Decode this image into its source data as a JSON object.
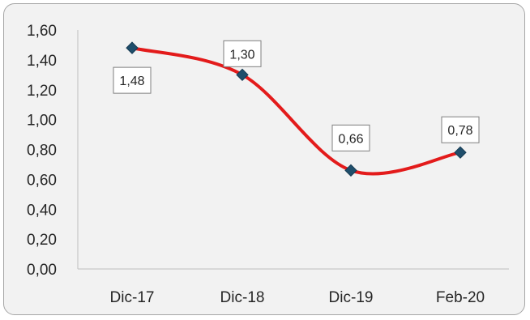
{
  "chart_data": {
    "type": "line",
    "categories": [
      "Dic-17",
      "Dic-18",
      "Dic-19",
      "Feb-20"
    ],
    "series": [
      {
        "values": [
          1.48,
          1.3,
          0.66,
          0.78
        ],
        "data_labels": [
          "1,48",
          "1,30",
          "0,66",
          "0,78"
        ],
        "line_color": "#e31b1b",
        "marker_color": "#1f4e6b",
        "marker": "diamond",
        "smooth": true
      }
    ],
    "ylim": [
      0,
      1.6
    ],
    "yticks": [
      0,
      0.2,
      0.4,
      0.6,
      0.8,
      1.0,
      1.2,
      1.4,
      1.6
    ],
    "ytick_labels": [
      "0,00",
      "0,20",
      "0,40",
      "0,60",
      "0,80",
      "1,00",
      "1,20",
      "1,40",
      "1,60"
    ],
    "grid": false,
    "legend": "none",
    "title": "",
    "xlabel": "",
    "ylabel": ""
  }
}
